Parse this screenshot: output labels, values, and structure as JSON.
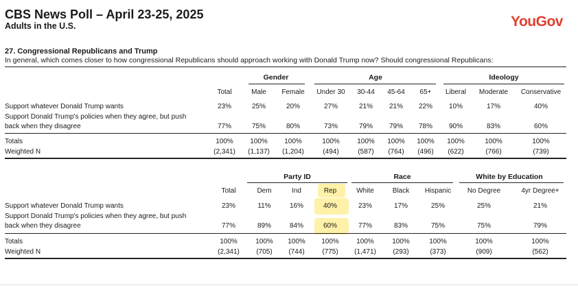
{
  "header": {
    "title": "CBS News Poll – April 23-25, 2025",
    "subtitle": "Adults in the U.S.",
    "logo": "YouGov",
    "logo_color": "#e0402f"
  },
  "question": {
    "title": "27. Congressional Republicans and Trump",
    "text": "In general, which comes closer to how congressional Republicans should approach working with Donald Trump now? Should congressional Republicans:"
  },
  "row_labels": {
    "r1": "Support whatever Donald Trump wants",
    "r2a": "Support Donald Trump's policies when they agree, but push",
    "r2b": "back when they disagree",
    "totals": "Totals",
    "weighted": "Weighted N"
  },
  "table1": {
    "groups": {
      "gender": "Gender",
      "age": "Age",
      "ideology": "Ideology"
    },
    "columns": [
      {
        "h": "Total",
        "r1": "23%",
        "r2": "77%",
        "tot": "100%",
        "n": "(2,341)"
      },
      {
        "h": "Male",
        "r1": "25%",
        "r2": "75%",
        "tot": "100%",
        "n": "(1,137)"
      },
      {
        "h": "Female",
        "r1": "20%",
        "r2": "80%",
        "tot": "100%",
        "n": "(1,204)"
      },
      {
        "h": "Under 30",
        "r1": "27%",
        "r2": "73%",
        "tot": "100%",
        "n": "(494)"
      },
      {
        "h": "30-44",
        "r1": "21%",
        "r2": "79%",
        "tot": "100%",
        "n": "(587)"
      },
      {
        "h": "45-64",
        "r1": "21%",
        "r2": "79%",
        "tot": "100%",
        "n": "(764)"
      },
      {
        "h": "65+",
        "r1": "22%",
        "r2": "78%",
        "tot": "100%",
        "n": "(496)"
      },
      {
        "h": "Liberal",
        "r1": "10%",
        "r2": "90%",
        "tot": "100%",
        "n": "(622)"
      },
      {
        "h": "Moderate",
        "r1": "17%",
        "r2": "83%",
        "tot": "100%",
        "n": "(766)"
      },
      {
        "h": "Conservative",
        "r1": "40%",
        "r2": "60%",
        "tot": "100%",
        "n": "(739)"
      }
    ]
  },
  "table2": {
    "groups": {
      "party": "Party ID",
      "race": "Race",
      "education": "White by Education"
    },
    "columns": [
      {
        "h": "Total",
        "r1": "23%",
        "r2": "77%",
        "tot": "100%",
        "n": "(2,341)"
      },
      {
        "h": "Dem",
        "r1": "11%",
        "r2": "89%",
        "tot": "100%",
        "n": "(705)"
      },
      {
        "h": "Ind",
        "r1": "16%",
        "r2": "84%",
        "tot": "100%",
        "n": "(744)"
      },
      {
        "h": "Rep",
        "r1": "40%",
        "r2": "60%",
        "tot": "100%",
        "n": "(775)"
      },
      {
        "h": "White",
        "r1": "23%",
        "r2": "77%",
        "tot": "100%",
        "n": "(1,471)"
      },
      {
        "h": "Black",
        "r1": "17%",
        "r2": "83%",
        "tot": "100%",
        "n": "(293)"
      },
      {
        "h": "Hispanic",
        "r1": "25%",
        "r2": "75%",
        "tot": "100%",
        "n": "(373)"
      },
      {
        "h": "No Degree",
        "r1": "25%",
        "r2": "75%",
        "tot": "100%",
        "n": "(909)"
      },
      {
        "h": "4yr Degree+",
        "r1": "21%",
        "r2": "79%",
        "tot": "100%",
        "n": "(562)"
      }
    ],
    "highlight_color": "#fff1a8"
  }
}
